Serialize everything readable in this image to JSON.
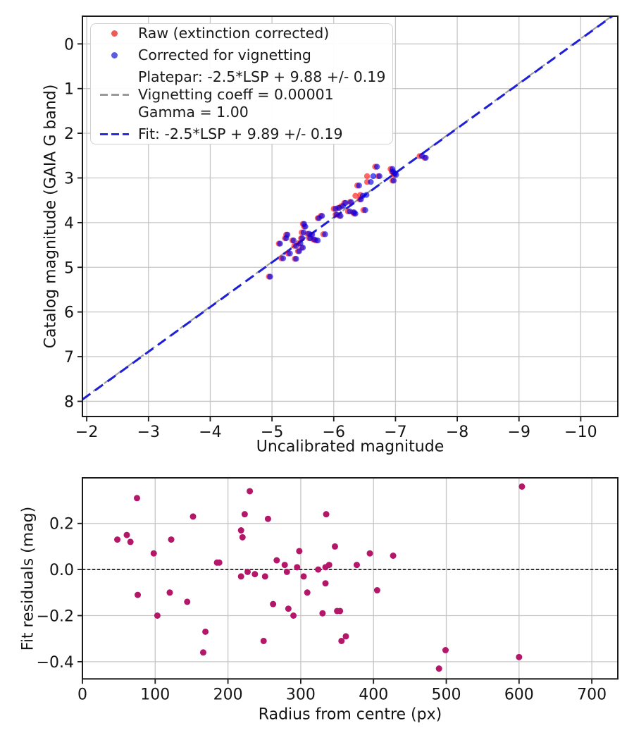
{
  "figure": {
    "background": "#ffffff"
  },
  "legend": {
    "entries": [
      {
        "type": "dot",
        "color": "#ee5a55",
        "label": "Raw (extinction corrected)"
      },
      {
        "type": "dot",
        "color": "#5b5ce4",
        "label": "Corrected for vignetting"
      },
      {
        "type": "dash",
        "color": "#9b9b9b",
        "lines": [
          "Platepar: -2.5*LSP + 9.88 +/- 0.19",
          "Vignetting coeff = 0.00001",
          "Gamma = 1.00"
        ]
      },
      {
        "type": "dash",
        "color": "#2a2adf",
        "label": "Fit: -2.5*LSP + 9.89 +/- 0.19"
      }
    ]
  },
  "chart_data": [
    {
      "type": "scatter",
      "xlabel": "Uncalibrated magnitude",
      "ylabel": "Catalog magnitude (GAIA G band)",
      "xlim": [
        -1.93,
        -10.6
      ],
      "ylim": [
        -0.62,
        8.34
      ],
      "x_axis_inverted": true,
      "y_axis_inverted": true,
      "grid": true,
      "grid_color": "#c6c6c6",
      "x_ticks": [
        [
          -2,
          "−2"
        ],
        [
          -3,
          "−3"
        ],
        [
          -4,
          "−4"
        ],
        [
          -5,
          "−5"
        ],
        [
          -6,
          "−6"
        ],
        [
          -7,
          "−7"
        ],
        [
          -8,
          "−8"
        ],
        [
          -9,
          "−9"
        ],
        [
          -10,
          "−10"
        ]
      ],
      "y_ticks": [
        [
          0,
          "0"
        ],
        [
          1,
          "1"
        ],
        [
          2,
          "2"
        ],
        [
          3,
          "3"
        ],
        [
          4,
          "4"
        ],
        [
          5,
          "5"
        ],
        [
          6,
          "6"
        ],
        [
          7,
          "7"
        ],
        [
          8,
          "8"
        ]
      ],
      "series": [
        {
          "name": "Raw (extinction corrected)",
          "fill": "#ff0000",
          "opacity": 0.6,
          "radius": 4.2
        },
        {
          "name": "Corrected for vignetting",
          "fill": "#0000ee",
          "opacity": 0.65,
          "radius": 4.2
        }
      ],
      "lines": [
        {
          "name": "platepar-line",
          "type": "function",
          "slope": 1,
          "intercept": 9.88,
          "color": "#9b9b9b",
          "dash": "12 7",
          "width": 2.2
        },
        {
          "name": "fit-line",
          "type": "function",
          "slope": 1,
          "intercept": 9.89,
          "color": "#1f1fd9",
          "dash": "14 8",
          "width": 3
        }
      ],
      "points": [
        [
          -4.97,
          5.21,
          0.02
        ],
        [
          -5.13,
          4.47,
          0.02
        ],
        [
          -5.18,
          4.8,
          0.03
        ],
        [
          -5.25,
          4.27,
          0.02
        ],
        [
          -5.23,
          4.35,
          0.02
        ],
        [
          -5.29,
          4.69,
          0.03
        ],
        [
          -5.35,
          4.4,
          0.02
        ],
        [
          -5.39,
          4.52,
          0.03
        ],
        [
          -5.39,
          4.81,
          0.02
        ],
        [
          -5.44,
          4.64,
          0.02
        ],
        [
          -5.46,
          4.46,
          0.03
        ],
        [
          -5.5,
          4.56,
          0.02
        ],
        [
          -5.49,
          4.35,
          0.02
        ],
        [
          -5.51,
          4.22,
          0.03
        ],
        [
          -5.54,
          4.09,
          0.02
        ],
        [
          -5.52,
          4.03,
          0.02
        ],
        [
          -5.6,
          4.25,
          0.03
        ],
        [
          -5.62,
          4.35,
          0.02
        ],
        [
          -5.65,
          4.27,
          0.02
        ],
        [
          -5.69,
          4.38,
          0.02
        ],
        [
          -5.74,
          4.4,
          0.03
        ],
        [
          -5.76,
          3.9,
          0.02
        ],
        [
          -5.81,
          3.85,
          0.02
        ],
        [
          -5.86,
          4.26,
          0.03
        ],
        [
          -6.03,
          3.69,
          0.03
        ],
        [
          -6.09,
          3.67,
          0.02
        ],
        [
          -6.15,
          3.63,
          0.03
        ],
        [
          -6.19,
          3.56,
          0.02
        ],
        [
          -6.26,
          3.75,
          0.03
        ],
        [
          -6.33,
          3.77,
          0.02
        ],
        [
          -6.11,
          3.85,
          0.02
        ],
        [
          -6.05,
          3.82,
          0.02
        ],
        [
          -6.28,
          3.54,
          0.02
        ],
        [
          -6.41,
          3.17,
          0.03
        ],
        [
          -6.44,
          3.48,
          0.02
        ],
        [
          -6.47,
          3.4,
          0.12
        ],
        [
          -6.53,
          3.38,
          0.1
        ],
        [
          -6.6,
          3.09,
          0.06
        ],
        [
          -6.35,
          3.8,
          0.02
        ],
        [
          -6.51,
          3.72,
          0.03
        ],
        [
          -6.64,
          2.96,
          0.1
        ],
        [
          -6.7,
          2.75,
          0.03
        ],
        [
          -6.74,
          2.96,
          0.02
        ],
        [
          -6.95,
          2.8,
          0.03
        ],
        [
          -6.96,
          2.86,
          0.02
        ],
        [
          -6.99,
          2.9,
          0.02
        ],
        [
          -7.01,
          2.93,
          0.03
        ],
        [
          -6.97,
          3.06,
          0.02
        ],
        [
          -7.43,
          2.51,
          0.04
        ],
        [
          -7.49,
          2.55,
          0.02
        ]
      ]
    },
    {
      "type": "scatter",
      "xlabel": "Radius from centre (px)",
      "ylabel": "Fit residuals (mag)",
      "xlim": [
        0,
        735.7
      ],
      "ylim": [
        0.398,
        -0.4747
      ],
      "grid": true,
      "grid_color": "#c6c6c6",
      "x_ticks": [
        [
          0,
          "0"
        ],
        [
          100,
          "100"
        ],
        [
          200,
          "200"
        ],
        [
          300,
          "300"
        ],
        [
          400,
          "400"
        ],
        [
          500,
          "500"
        ],
        [
          600,
          "600"
        ],
        [
          700,
          "700"
        ]
      ],
      "y_ticks": [
        [
          0.2,
          "0.2"
        ],
        [
          0.0,
          "0.0"
        ],
        [
          -0.2,
          "−0.2"
        ],
        [
          -0.4,
          "−0.4"
        ]
      ],
      "series": [
        {
          "name": "Fit residuals",
          "fill": "#b41669",
          "opacity": 1,
          "radius": 4.5
        }
      ],
      "lines": [
        {
          "name": "zero-line",
          "type": "hline",
          "y": 0,
          "color": "#1c1c1c",
          "dash": "4.2 2.8",
          "width": 1.8
        }
      ],
      "points": [
        [
          48,
          0.13
        ],
        [
          61,
          0.15
        ],
        [
          66,
          0.12
        ],
        [
          75,
          0.31
        ],
        [
          76,
          -0.11
        ],
        [
          98,
          0.07
        ],
        [
          103,
          -0.2
        ],
        [
          120,
          -0.1
        ],
        [
          122,
          0.13
        ],
        [
          144,
          -0.14
        ],
        [
          152,
          0.23
        ],
        [
          166,
          -0.36
        ],
        [
          169,
          -0.27
        ],
        [
          185,
          0.03
        ],
        [
          188,
          0.03
        ],
        [
          218,
          0.17
        ],
        [
          218,
          -0.03
        ],
        [
          220,
          0.14
        ],
        [
          223,
          0.24
        ],
        [
          227,
          -0.01
        ],
        [
          230,
          0.34
        ],
        [
          237,
          -0.02
        ],
        [
          249,
          -0.31
        ],
        [
          251,
          -0.03
        ],
        [
          255,
          0.22
        ],
        [
          262,
          -0.15
        ],
        [
          267,
          0.04
        ],
        [
          278,
          0.02
        ],
        [
          281,
          -0.01
        ],
        [
          283,
          -0.17
        ],
        [
          290,
          -0.2
        ],
        [
          295,
          0.01
        ],
        [
          298,
          0.08
        ],
        [
          304,
          -0.03
        ],
        [
          309,
          -0.1
        ],
        [
          324,
          0.0
        ],
        [
          330,
          -0.19
        ],
        [
          334,
          0.01
        ],
        [
          334,
          -0.06
        ],
        [
          335,
          0.24
        ],
        [
          339,
          0.02
        ],
        [
          347,
          0.1
        ],
        [
          350,
          -0.18
        ],
        [
          354,
          -0.18
        ],
        [
          356,
          -0.31
        ],
        [
          362,
          -0.29
        ],
        [
          377,
          0.02
        ],
        [
          395,
          0.07
        ],
        [
          405,
          -0.09
        ],
        [
          427,
          0.06
        ],
        [
          490,
          -0.43
        ],
        [
          499,
          -0.35
        ],
        [
          600,
          -0.38
        ],
        [
          604,
          0.36
        ]
      ]
    }
  ]
}
